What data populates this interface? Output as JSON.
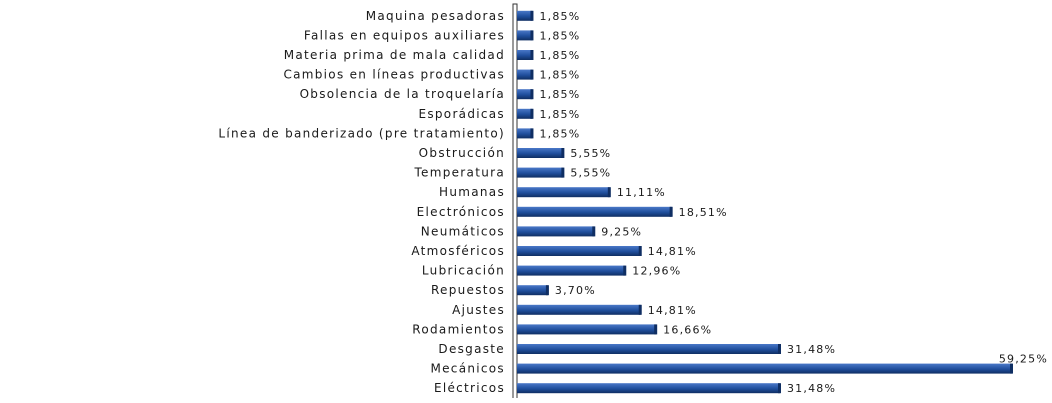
{
  "chart_data": {
    "type": "bar",
    "orientation": "horizontal",
    "categories": [
      "Maquina pesadoras",
      "Fallas en equipos auxiliares",
      "Materia prima de mala calidad",
      "Cambios en líneas productivas",
      "Obsolencia de la troquelaría",
      "Esporádicas",
      "Línea de banderizado (pre tratamiento)",
      "Obstrucción",
      "Temperatura",
      "Humanas",
      "Electrónicos",
      "Neumáticos",
      "Atmosféricos",
      "Lubricación",
      "Repuestos",
      "Ajustes",
      "Rodamientos",
      "Desgaste",
      "Mecánicos",
      "Eléctricos"
    ],
    "values": [
      1.85,
      1.85,
      1.85,
      1.85,
      1.85,
      1.85,
      1.85,
      5.55,
      5.55,
      11.11,
      18.51,
      9.25,
      14.81,
      12.96,
      3.7,
      14.81,
      16.66,
      31.48,
      59.25,
      31.48
    ],
    "data_labels": [
      "1,85%",
      "1,85%",
      "1,85%",
      "1,85%",
      "1,85%",
      "1,85%",
      "1,85%",
      "5,55%",
      "5,55%",
      "11,11%",
      "18,51%",
      "9,25%",
      "14,81%",
      "12,96%",
      "3,70%",
      "14,81%",
      "16,66%",
      "31,48%",
      "59,25%",
      "31,48%"
    ],
    "xlim": [
      0,
      59.25
    ],
    "title": "",
    "xlabel": "",
    "ylabel": "",
    "grid": false,
    "legend": "none",
    "colors": {
      "bar": "#1f4e9c",
      "bar_dark": "#0f2e63",
      "bar_light": "#4a78c8",
      "axis": "#333333",
      "text": "#1a1a1a"
    }
  }
}
